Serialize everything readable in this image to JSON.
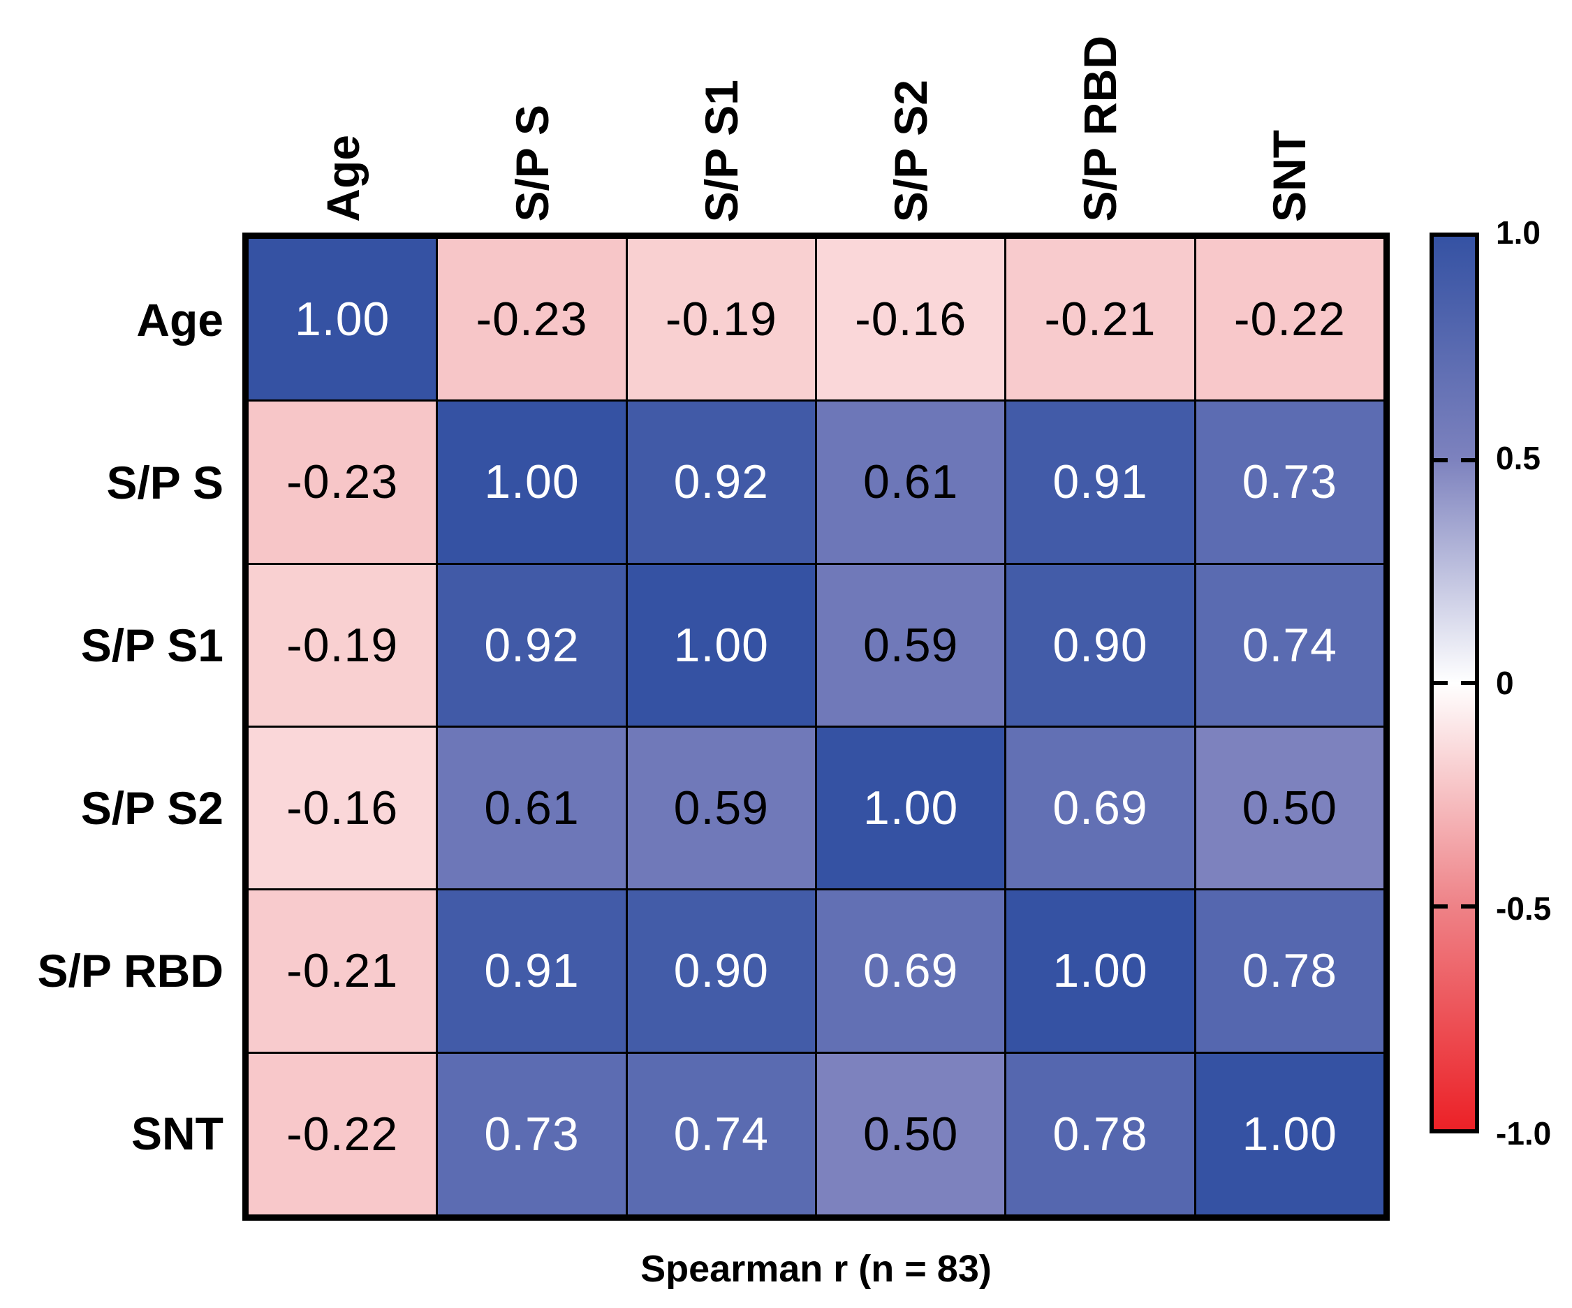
{
  "chart_data": {
    "type": "heatmap",
    "title": "Spearman r (n = 83)",
    "categories": [
      "Age",
      "S/P S",
      "S/P S1",
      "S/P S2",
      "S/P RBD",
      "SNT"
    ],
    "rows": [
      "Age",
      "S/P S",
      "S/P S1",
      "S/P S2",
      "S/P RBD",
      "SNT"
    ],
    "matrix": [
      [
        1.0,
        -0.23,
        -0.19,
        -0.16,
        -0.21,
        -0.22
      ],
      [
        -0.23,
        1.0,
        0.92,
        0.61,
        0.91,
        0.73
      ],
      [
        -0.19,
        0.92,
        1.0,
        0.59,
        0.9,
        0.74
      ],
      [
        -0.16,
        0.61,
        0.59,
        1.0,
        0.69,
        0.5
      ],
      [
        -0.21,
        0.91,
        0.9,
        0.69,
        1.0,
        0.78
      ],
      [
        -0.22,
        0.73,
        0.74,
        0.5,
        0.78,
        1.0
      ]
    ],
    "value_range": [
      -1,
      1
    ],
    "grid": true,
    "legend_position": "right",
    "colorscale": [
      {
        "v": -1.0,
        "color": "#ec2127"
      },
      {
        "v": -0.5,
        "color": "#ee8287"
      },
      {
        "v": 0.0,
        "color": "#ffffff"
      },
      {
        "v": 0.5,
        "color": "#7d82be"
      },
      {
        "v": 1.0,
        "color": "#3552a3"
      }
    ],
    "cell_text_colors": {
      "dark": "#000000",
      "light": "#ffffff",
      "light_threshold": 0.69
    },
    "colorbar_ticks": [
      {
        "label": "1.0",
        "value": 1.0
      },
      {
        "label": "0.5",
        "value": 0.5
      },
      {
        "label": "0",
        "value": 0.0
      },
      {
        "label": "-0.5",
        "value": -0.5
      },
      {
        "label": "-1.0",
        "value": -1.0
      }
    ]
  }
}
